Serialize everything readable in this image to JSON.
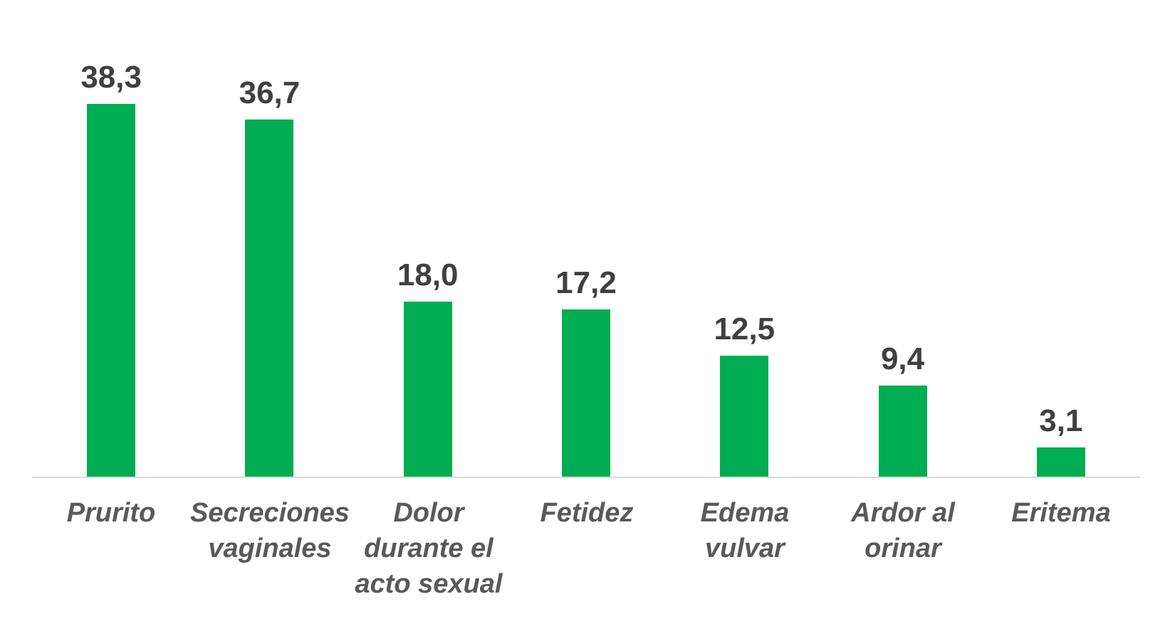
{
  "chart_data": {
    "type": "bar",
    "title": "",
    "xlabel": "",
    "ylabel": "",
    "categories": [
      "Prurito",
      "Secreciones vaginales",
      "Dolor durante el acto sexual",
      "Fetidez",
      "Edema vulvar",
      "Ardor al orinar",
      "Eritema"
    ],
    "category_lines": [
      [
        "Prurito"
      ],
      [
        "Secreciones",
        "vaginales"
      ],
      [
        "Dolor",
        "durante el",
        "acto sexual"
      ],
      [
        "Fetidez"
      ],
      [
        "Edema",
        "vulvar"
      ],
      [
        "Ardor al",
        "orinar"
      ],
      [
        "Eritema"
      ]
    ],
    "values": [
      38.3,
      36.7,
      18.0,
      17.2,
      12.5,
      9.4,
      3.1
    ],
    "value_labels": [
      "38,3",
      "36,7",
      "18,0",
      "17,2",
      "12,5",
      "9,4",
      "3,1"
    ],
    "decimal_separator": ",",
    "ylim": [
      0,
      45
    ],
    "grid": false,
    "legend": false,
    "data_labels_position": "above-bar",
    "colors": {
      "bar": "#00AD52",
      "value_label": "#404040",
      "category_label": "#595959",
      "axis_line": "#D9D9D9",
      "background": "#FFFFFF"
    }
  }
}
